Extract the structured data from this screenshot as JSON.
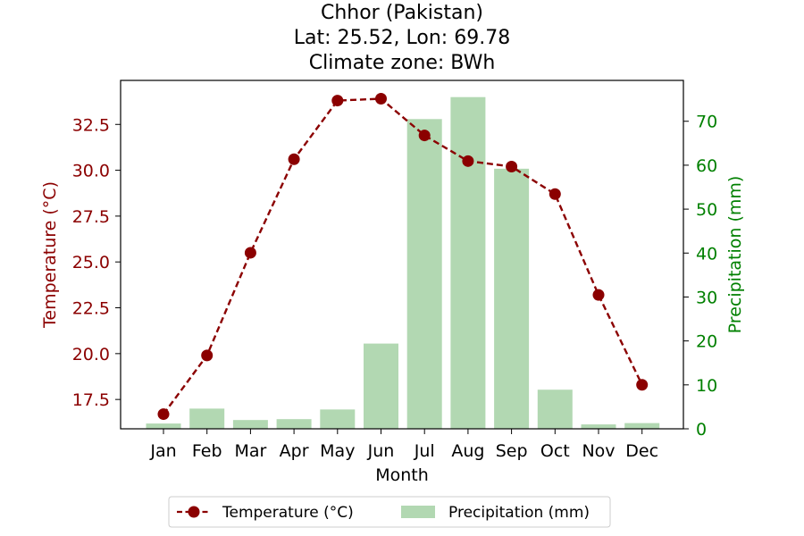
{
  "chart_data": {
    "type": "bar+line",
    "title": [
      "Chhor (Pakistan)",
      "Lat: 25.52, Lon: 69.78",
      "Climate zone: BWh"
    ],
    "xlabel": "Month",
    "ylabel_left": "Temperature (°C)",
    "ylabel_right": "Precipitation (mm)",
    "categories": [
      "Jan",
      "Feb",
      "Mar",
      "Apr",
      "May",
      "Jun",
      "Jul",
      "Aug",
      "Sep",
      "Oct",
      "Nov",
      "Dec"
    ],
    "series": [
      {
        "name": "Temperature (°C)",
        "type": "line",
        "axis": "left",
        "color": "#8b0000",
        "values": [
          16.7,
          19.9,
          25.5,
          30.6,
          33.8,
          33.9,
          31.9,
          30.5,
          30.2,
          28.7,
          23.2,
          18.3
        ]
      },
      {
        "name": "Precipitation (mm)",
        "type": "bar",
        "axis": "right",
        "color": "#b2d8b2",
        "values": [
          1.2,
          4.6,
          2.0,
          2.2,
          4.4,
          19.4,
          70.5,
          75.5,
          59.2,
          8.9,
          1.0,
          1.3
        ]
      }
    ],
    "ylim_left": [
      15.9,
      34.9
    ],
    "yticks_left": [
      17.5,
      20.0,
      22.5,
      25.0,
      27.5,
      30.0,
      32.5
    ],
    "yticks_left_labels": [
      "17.5",
      "20.0",
      "22.5",
      "25.0",
      "27.5",
      "30.0",
      "32.5"
    ],
    "ylim_right": [
      0,
      79.3
    ],
    "yticks_right": [
      0,
      10,
      20,
      30,
      40,
      50,
      60,
      70
    ],
    "yticks_right_labels": [
      "0",
      "10",
      "20",
      "30",
      "40",
      "50",
      "60",
      "70"
    ],
    "left_axis_color": "#8b0000",
    "right_axis_color": "#008000",
    "legend": {
      "position": "bottom-center",
      "entries": [
        "Temperature (°C)",
        "Precipitation (mm)"
      ]
    },
    "grid": false
  }
}
